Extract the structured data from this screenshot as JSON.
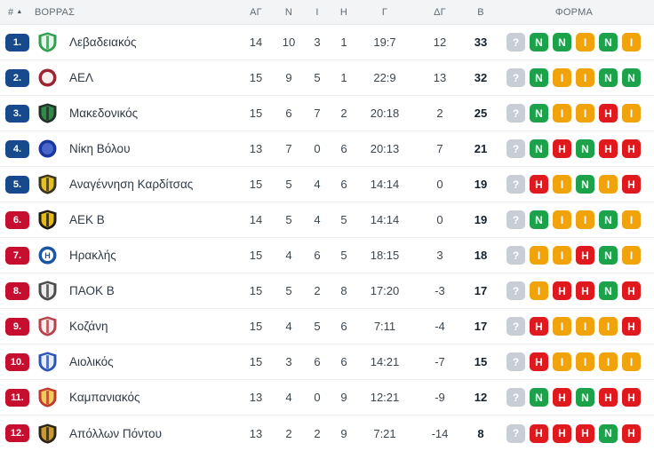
{
  "colors": {
    "zone_top": "#17498d",
    "zone_bottom": "#c60e2f",
    "form_win": "#1ba24b",
    "form_draw": "#f0a30b",
    "form_loss": "#e0191f",
    "form_unknown": "#c7ced5",
    "header_bg": "#f3f4f5",
    "row_bg": "#ffffff"
  },
  "table": {
    "headers": {
      "rank": "#",
      "sort_icon": "▲",
      "group": "ΒΟΡΡΑΣ",
      "played": "ΑΓ",
      "wins": "Ν",
      "draws": "Ι",
      "losses": "Η",
      "goals": "Γ",
      "goal_diff": "ΔΓ",
      "points": "Β",
      "form": "ΦΟΡΜΑ"
    },
    "rows": [
      {
        "pos": "1.",
        "zone": "top",
        "team": "Λεβαδειακός",
        "played": "14",
        "wins": "10",
        "draws": "3",
        "losses": "1",
        "goals": "19:7",
        "goal_diff": "12",
        "points": "33",
        "logo": {
          "shape": "shield",
          "colors": [
            "#2f9e4e",
            "#e9f4ec"
          ]
        },
        "form": [
          {
            "letter": "?",
            "result": "unknown"
          },
          {
            "letter": "N",
            "result": "win"
          },
          {
            "letter": "N",
            "result": "win"
          },
          {
            "letter": "I",
            "result": "draw"
          },
          {
            "letter": "N",
            "result": "win"
          },
          {
            "letter": "I",
            "result": "draw"
          }
        ]
      },
      {
        "pos": "2.",
        "zone": "top",
        "team": "ΑΕΛ",
        "played": "15",
        "wins": "9",
        "draws": "5",
        "losses": "1",
        "goals": "22:9",
        "goal_diff": "13",
        "points": "32",
        "logo": {
          "shape": "circle",
          "colors": [
            "#9c2433",
            "#f6efed"
          ]
        },
        "form": [
          {
            "letter": "?",
            "result": "unknown"
          },
          {
            "letter": "N",
            "result": "win"
          },
          {
            "letter": "I",
            "result": "draw"
          },
          {
            "letter": "I",
            "result": "draw"
          },
          {
            "letter": "N",
            "result": "win"
          },
          {
            "letter": "N",
            "result": "win"
          }
        ]
      },
      {
        "pos": "3.",
        "zone": "top",
        "team": "Μακεδονικός",
        "played": "15",
        "wins": "6",
        "draws": "7",
        "losses": "2",
        "goals": "20:18",
        "goal_diff": "2",
        "points": "25",
        "logo": {
          "shape": "shield",
          "colors": [
            "#233029",
            "#2e8b46"
          ]
        },
        "form": [
          {
            "letter": "?",
            "result": "unknown"
          },
          {
            "letter": "N",
            "result": "win"
          },
          {
            "letter": "I",
            "result": "draw"
          },
          {
            "letter": "I",
            "result": "draw"
          },
          {
            "letter": "H",
            "result": "loss"
          },
          {
            "letter": "I",
            "result": "draw"
          }
        ]
      },
      {
        "pos": "4.",
        "zone": "top",
        "team": "Νίκη Βόλου",
        "played": "13",
        "wins": "7",
        "draws": "0",
        "losses": "6",
        "goals": "20:13",
        "goal_diff": "7",
        "points": "21",
        "logo": {
          "shape": "circle",
          "colors": [
            "#1a36a0",
            "#4a66c8"
          ]
        },
        "form": [
          {
            "letter": "?",
            "result": "unknown"
          },
          {
            "letter": "N",
            "result": "win"
          },
          {
            "letter": "H",
            "result": "loss"
          },
          {
            "letter": "N",
            "result": "win"
          },
          {
            "letter": "H",
            "result": "loss"
          },
          {
            "letter": "H",
            "result": "loss"
          }
        ]
      },
      {
        "pos": "5.",
        "zone": "top",
        "team": "Αναγέννηση Καρδίτσας",
        "played": "15",
        "wins": "5",
        "draws": "4",
        "losses": "6",
        "goals": "14:14",
        "goal_diff": "0",
        "points": "19",
        "logo": {
          "shape": "shield",
          "colors": [
            "#3a3420",
            "#e6c01d"
          ]
        },
        "form": [
          {
            "letter": "?",
            "result": "unknown"
          },
          {
            "letter": "H",
            "result": "loss"
          },
          {
            "letter": "I",
            "result": "draw"
          },
          {
            "letter": "N",
            "result": "win"
          },
          {
            "letter": "I",
            "result": "draw"
          },
          {
            "letter": "H",
            "result": "loss"
          }
        ]
      },
      {
        "pos": "6.",
        "zone": "bottom",
        "team": "ΑΕΚ Β",
        "played": "14",
        "wins": "5",
        "draws": "4",
        "losses": "5",
        "goals": "14:14",
        "goal_diff": "0",
        "points": "19",
        "logo": {
          "shape": "shield",
          "colors": [
            "#1d1a14",
            "#e8b90f"
          ]
        },
        "form": [
          {
            "letter": "?",
            "result": "unknown"
          },
          {
            "letter": "N",
            "result": "win"
          },
          {
            "letter": "I",
            "result": "draw"
          },
          {
            "letter": "I",
            "result": "draw"
          },
          {
            "letter": "N",
            "result": "win"
          },
          {
            "letter": "I",
            "result": "draw"
          }
        ]
      },
      {
        "pos": "7.",
        "zone": "bottom",
        "team": "Ηρακλής",
        "played": "15",
        "wins": "4",
        "draws": "6",
        "losses": "5",
        "goals": "18:15",
        "goal_diff": "3",
        "points": "18",
        "logo": {
          "shape": "circle",
          "colors": [
            "#1d55a5",
            "#ffffff"
          ],
          "glyph": "H"
        },
        "form": [
          {
            "letter": "?",
            "result": "unknown"
          },
          {
            "letter": "I",
            "result": "draw"
          },
          {
            "letter": "I",
            "result": "draw"
          },
          {
            "letter": "H",
            "result": "loss"
          },
          {
            "letter": "N",
            "result": "win"
          },
          {
            "letter": "I",
            "result": "draw"
          }
        ]
      },
      {
        "pos": "8.",
        "zone": "bottom",
        "team": "ΠΑΟΚ Β",
        "played": "15",
        "wins": "5",
        "draws": "2",
        "losses": "8",
        "goals": "17:20",
        "goal_diff": "-3",
        "points": "17",
        "logo": {
          "shape": "shield",
          "colors": [
            "#4a4a4a",
            "#ececec"
          ]
        },
        "form": [
          {
            "letter": "?",
            "result": "unknown"
          },
          {
            "letter": "I",
            "result": "draw"
          },
          {
            "letter": "H",
            "result": "loss"
          },
          {
            "letter": "H",
            "result": "loss"
          },
          {
            "letter": "N",
            "result": "win"
          },
          {
            "letter": "H",
            "result": "loss"
          }
        ]
      },
      {
        "pos": "9.",
        "zone": "bottom",
        "team": "Κοζάνη",
        "played": "15",
        "wins": "4",
        "draws": "5",
        "losses": "6",
        "goals": "7:11",
        "goal_diff": "-4",
        "points": "17",
        "logo": {
          "shape": "shield",
          "colors": [
            "#b8424c",
            "#f6efee"
          ]
        },
        "form": [
          {
            "letter": "?",
            "result": "unknown"
          },
          {
            "letter": "H",
            "result": "loss"
          },
          {
            "letter": "I",
            "result": "draw"
          },
          {
            "letter": "I",
            "result": "draw"
          },
          {
            "letter": "I",
            "result": "draw"
          },
          {
            "letter": "H",
            "result": "loss"
          }
        ]
      },
      {
        "pos": "10.",
        "zone": "bottom",
        "team": "Αιολικός",
        "played": "15",
        "wins": "3",
        "draws": "6",
        "losses": "6",
        "goals": "14:21",
        "goal_diff": "-7",
        "points": "15",
        "logo": {
          "shape": "shield",
          "colors": [
            "#2b55b4",
            "#e8edf8"
          ]
        },
        "form": [
          {
            "letter": "?",
            "result": "unknown"
          },
          {
            "letter": "H",
            "result": "loss"
          },
          {
            "letter": "I",
            "result": "draw"
          },
          {
            "letter": "I",
            "result": "draw"
          },
          {
            "letter": "I",
            "result": "draw"
          },
          {
            "letter": "I",
            "result": "draw"
          }
        ]
      },
      {
        "pos": "11.",
        "zone": "bottom",
        "team": "Καμπανιακός",
        "played": "13",
        "wins": "4",
        "draws": "0",
        "losses": "9",
        "goals": "12:21",
        "goal_diff": "-9",
        "points": "12",
        "logo": {
          "shape": "shield",
          "colors": [
            "#c0392f",
            "#eccf58"
          ]
        },
        "form": [
          {
            "letter": "?",
            "result": "unknown"
          },
          {
            "letter": "N",
            "result": "win"
          },
          {
            "letter": "H",
            "result": "loss"
          },
          {
            "letter": "N",
            "result": "win"
          },
          {
            "letter": "H",
            "result": "loss"
          },
          {
            "letter": "H",
            "result": "loss"
          }
        ]
      },
      {
        "pos": "12.",
        "zone": "bottom",
        "team": "Απόλλων Πόντου",
        "played": "13",
        "wins": "2",
        "draws": "2",
        "losses": "9",
        "goals": "7:21",
        "goal_diff": "-14",
        "points": "8",
        "logo": {
          "shape": "shield",
          "colors": [
            "#2c2318",
            "#c89b2a"
          ]
        },
        "form": [
          {
            "letter": "?",
            "result": "unknown"
          },
          {
            "letter": "H",
            "result": "loss"
          },
          {
            "letter": "H",
            "result": "loss"
          },
          {
            "letter": "H",
            "result": "loss"
          },
          {
            "letter": "N",
            "result": "win"
          },
          {
            "letter": "H",
            "result": "loss"
          }
        ]
      }
    ]
  }
}
